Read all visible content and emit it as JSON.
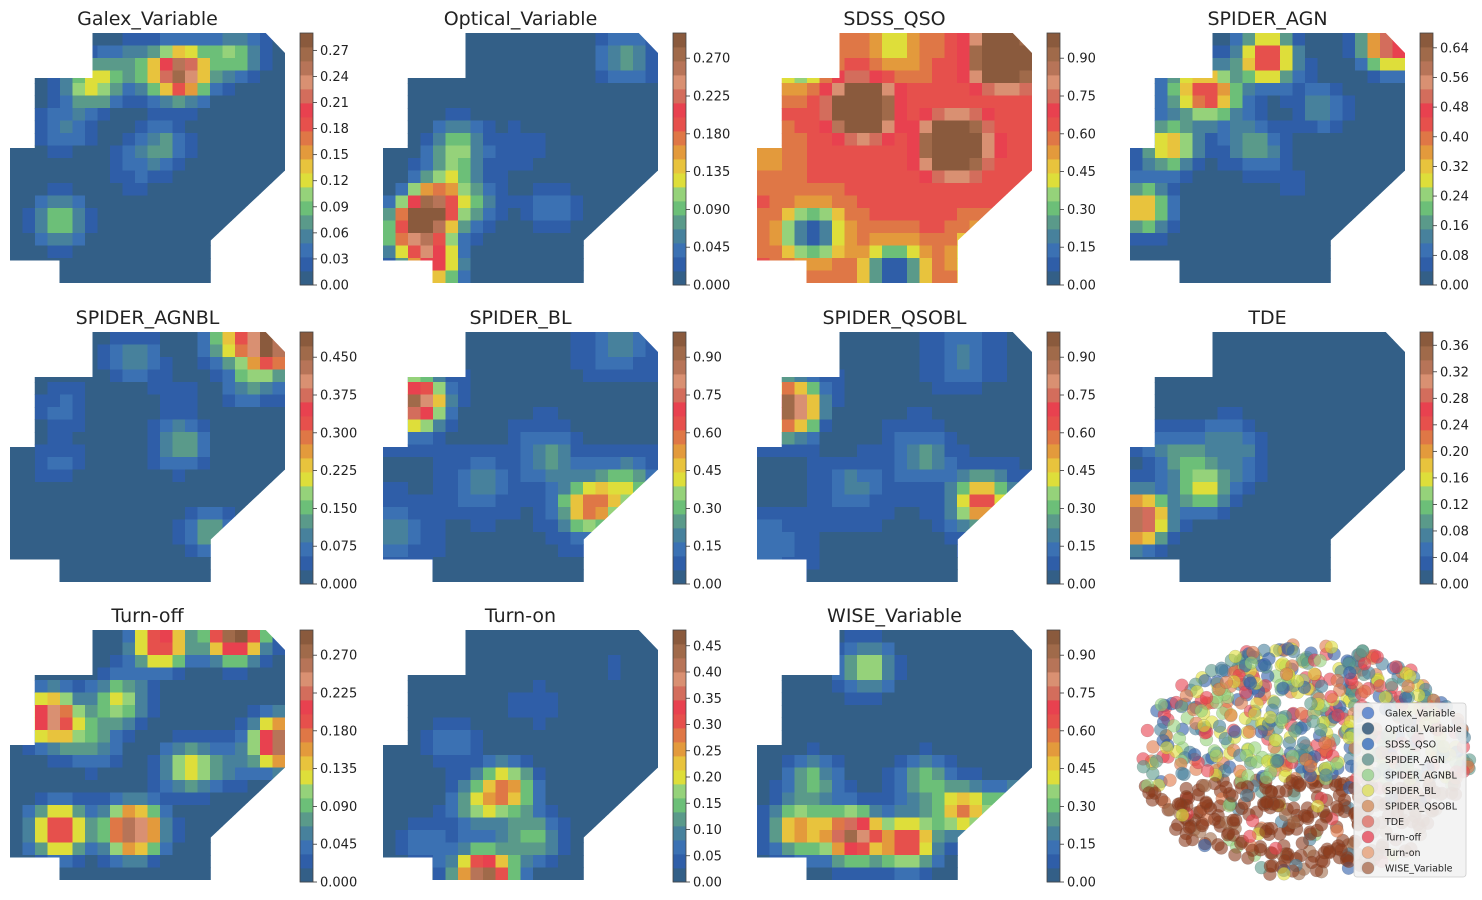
{
  "colormap": [
    "#335f87",
    "#2f5ea8",
    "#3b71b3",
    "#47819c",
    "#5a9a8a",
    "#6cbf78",
    "#95d27a",
    "#dede3a",
    "#e8c33d",
    "#e39a3c",
    "#df7746",
    "#e6504c",
    "#e8414f",
    "#d36d5c",
    "#d99072",
    "#b77458",
    "#a06a4a",
    "#8a5a3d"
  ],
  "scatter_colors": [
    "#2f5ea8",
    "#5a9a8a",
    "#47819c",
    "#95d27a",
    "#dede3a",
    "#df7746",
    "#e8414f",
    "#8a3a1d",
    "#a06a4a"
  ],
  "chart_data": [
    {
      "type": "heatmap",
      "title": "Galex_Variable",
      "colorbar_ticks": [
        "0.00",
        "0.03",
        "0.06",
        "0.09",
        "0.12",
        "0.15",
        "0.18",
        "0.21",
        "0.24",
        "0.27"
      ],
      "vmax": 0.29,
      "hotspots": [
        {
          "x": 0.62,
          "y": 0.16,
          "v": 0.27
        },
        {
          "x": 0.82,
          "y": 0.09,
          "v": 0.1
        },
        {
          "x": 0.3,
          "y": 0.2,
          "v": 0.13
        },
        {
          "x": 0.46,
          "y": 0.13,
          "v": 0.06
        },
        {
          "x": 0.55,
          "y": 0.45,
          "v": 0.07
        },
        {
          "x": 0.2,
          "y": 0.38,
          "v": 0.05
        },
        {
          "x": 0.18,
          "y": 0.75,
          "v": 0.1
        },
        {
          "x": 0.44,
          "y": 0.55,
          "v": 0.03
        }
      ]
    },
    {
      "type": "heatmap",
      "title": "Optical_Variable",
      "colorbar_ticks": [
        "0.000",
        "0.045",
        "0.090",
        "0.135",
        "0.180",
        "0.225",
        "0.270"
      ],
      "vmax": 0.3,
      "hotspots": [
        {
          "x": 0.17,
          "y": 0.72,
          "v": 0.28
        },
        {
          "x": 0.18,
          "y": 0.92,
          "v": 0.2
        },
        {
          "x": 0.1,
          "y": 0.8,
          "v": 0.14
        },
        {
          "x": 0.27,
          "y": 0.45,
          "v": 0.1
        },
        {
          "x": 0.24,
          "y": 0.6,
          "v": 0.08
        },
        {
          "x": 0.35,
          "y": 0.68,
          "v": 0.06
        },
        {
          "x": 0.88,
          "y": 0.1,
          "v": 0.08
        },
        {
          "x": 0.62,
          "y": 0.7,
          "v": 0.05
        },
        {
          "x": 0.5,
          "y": 0.45,
          "v": 0.03
        }
      ]
    },
    {
      "type": "heatmap",
      "title": "SDSS_QSO",
      "colorbar_ticks": [
        "0.00",
        "0.15",
        "0.30",
        "0.45",
        "0.60",
        "0.75",
        "0.90"
      ],
      "vmax": 1.0,
      "base": 0.62,
      "hotspots": [
        {
          "x": 0.72,
          "y": 0.45,
          "v": 0.98
        },
        {
          "x": 0.38,
          "y": 0.3,
          "v": 0.8
        },
        {
          "x": 0.9,
          "y": 0.1,
          "v": 0.95
        },
        {
          "x": 0.2,
          "y": 0.8,
          "v": -0.55
        },
        {
          "x": 0.5,
          "y": 0.95,
          "v": -0.6
        },
        {
          "x": 0.85,
          "y": 0.9,
          "v": -0.62
        },
        {
          "x": 0.05,
          "y": 0.5,
          "v": -0.1
        },
        {
          "x": 0.15,
          "y": 0.1,
          "v": -0.45
        },
        {
          "x": 0.5,
          "y": 0.05,
          "v": -0.2
        }
      ]
    },
    {
      "type": "heatmap",
      "title": "SPIDER_AGN",
      "colorbar_ticks": [
        "0.00",
        "0.08",
        "0.16",
        "0.24",
        "0.32",
        "0.40",
        "0.48",
        "0.56",
        "0.64"
      ],
      "vmax": 0.68,
      "hotspots": [
        {
          "x": 0.5,
          "y": 0.1,
          "v": 0.5
        },
        {
          "x": 0.15,
          "y": 0.45,
          "v": 0.35
        },
        {
          "x": 0.3,
          "y": 0.25,
          "v": 0.4
        },
        {
          "x": 0.95,
          "y": 0.05,
          "v": 0.55
        },
        {
          "x": 0.05,
          "y": 0.7,
          "v": 0.35
        },
        {
          "x": 0.7,
          "y": 0.3,
          "v": 0.15
        },
        {
          "x": 0.6,
          "y": 0.6,
          "v": 0.05
        },
        {
          "x": 0.2,
          "y": 0.2,
          "v": 0.2
        },
        {
          "x": 0.45,
          "y": 0.45,
          "v": 0.2
        }
      ]
    },
    {
      "type": "heatmap",
      "title": "SPIDER_AGNBL",
      "colorbar_ticks": [
        "0.000",
        "0.075",
        "0.150",
        "0.225",
        "0.300",
        "0.375",
        "0.450"
      ],
      "vmax": 0.5,
      "hotspots": [
        {
          "x": 0.95,
          "y": 0.05,
          "v": 0.48
        },
        {
          "x": 0.8,
          "y": 0.02,
          "v": 0.2
        },
        {
          "x": 0.88,
          "y": 0.2,
          "v": 0.12
        },
        {
          "x": 0.45,
          "y": 0.1,
          "v": 0.1
        },
        {
          "x": 0.62,
          "y": 0.45,
          "v": 0.14
        },
        {
          "x": 0.2,
          "y": 0.3,
          "v": 0.07
        },
        {
          "x": 0.73,
          "y": 0.8,
          "v": 0.13
        },
        {
          "x": 0.18,
          "y": 0.52,
          "v": 0.06
        },
        {
          "x": 0.6,
          "y": 0.25,
          "v": 0.04
        }
      ]
    },
    {
      "type": "heatmap",
      "title": "SPIDER_BL",
      "colorbar_ticks": [
        "0.00",
        "0.15",
        "0.30",
        "0.45",
        "0.60",
        "0.75",
        "0.90"
      ],
      "vmax": 1.0,
      "base": 0.05,
      "hotspots": [
        {
          "x": 0.12,
          "y": 0.28,
          "v": 0.9
        },
        {
          "x": 0.75,
          "y": 0.7,
          "v": 0.55
        },
        {
          "x": 0.88,
          "y": 0.62,
          "v": 0.3
        },
        {
          "x": 0.6,
          "y": 0.5,
          "v": 0.2
        },
        {
          "x": 0.35,
          "y": 0.6,
          "v": 0.15
        },
        {
          "x": 0.85,
          "y": 0.05,
          "v": 0.15
        },
        {
          "x": 0.05,
          "y": 0.8,
          "v": 0.15
        },
        {
          "x": 0.3,
          "y": 0.35,
          "v": -0.05
        },
        {
          "x": 0.78,
          "y": 0.35,
          "v": -0.05
        }
      ]
    },
    {
      "type": "heatmap",
      "title": "SPIDER_QSOBL",
      "colorbar_ticks": [
        "0.00",
        "0.15",
        "0.30",
        "0.45",
        "0.60",
        "0.75",
        "0.90"
      ],
      "vmax": 1.0,
      "base": 0.05,
      "hotspots": [
        {
          "x": 0.12,
          "y": 0.3,
          "v": 0.92
        },
        {
          "x": 0.82,
          "y": 0.68,
          "v": 0.6
        },
        {
          "x": 0.6,
          "y": 0.5,
          "v": 0.2
        },
        {
          "x": 0.35,
          "y": 0.62,
          "v": 0.15
        },
        {
          "x": 0.75,
          "y": 0.1,
          "v": 0.15
        },
        {
          "x": 0.05,
          "y": 0.85,
          "v": 0.12
        },
        {
          "x": 0.3,
          "y": 0.38,
          "v": -0.05
        },
        {
          "x": 0.8,
          "y": 0.35,
          "v": -0.05
        }
      ]
    },
    {
      "type": "heatmap",
      "title": "TDE",
      "colorbar_ticks": [
        "0.00",
        "0.04",
        "0.08",
        "0.12",
        "0.16",
        "0.20",
        "0.24",
        "0.28",
        "0.32",
        "0.36"
      ],
      "vmax": 0.38,
      "hotspots": [
        {
          "x": 0.03,
          "y": 0.75,
          "v": 0.36
        },
        {
          "x": 0.27,
          "y": 0.63,
          "v": 0.15
        },
        {
          "x": 0.2,
          "y": 0.5,
          "v": 0.07
        },
        {
          "x": 0.35,
          "y": 0.42,
          "v": 0.06
        },
        {
          "x": 0.42,
          "y": 0.52,
          "v": 0.05
        },
        {
          "x": 0.1,
          "y": 0.45,
          "v": 0.04
        }
      ]
    },
    {
      "type": "heatmap",
      "title": "Turn-off",
      "colorbar_ticks": [
        "0.000",
        "0.045",
        "0.090",
        "0.135",
        "0.180",
        "0.225",
        "0.270"
      ],
      "vmax": 0.3,
      "hotspots": [
        {
          "x": 0.15,
          "y": 0.35,
          "v": 0.25
        },
        {
          "x": 0.18,
          "y": 0.8,
          "v": 0.22
        },
        {
          "x": 0.45,
          "y": 0.8,
          "v": 0.28
        },
        {
          "x": 0.55,
          "y": 0.05,
          "v": 0.22
        },
        {
          "x": 0.82,
          "y": 0.02,
          "v": 0.3
        },
        {
          "x": 0.98,
          "y": 0.45,
          "v": 0.28
        },
        {
          "x": 0.4,
          "y": 0.28,
          "v": 0.12
        },
        {
          "x": 0.3,
          "y": 0.45,
          "v": 0.08
        },
        {
          "x": 0.65,
          "y": 0.55,
          "v": 0.12
        },
        {
          "x": 0.78,
          "y": 0.55,
          "v": 0.04
        }
      ]
    },
    {
      "type": "heatmap",
      "title": "Turn-on",
      "colorbar_ticks": [
        "0.00",
        "0.05",
        "0.10",
        "0.15",
        "0.20",
        "0.25",
        "0.30",
        "0.35",
        "0.40",
        "0.45"
      ],
      "vmax": 0.48,
      "hotspots": [
        {
          "x": 0.37,
          "y": 0.98,
          "v": 0.45
        },
        {
          "x": 0.45,
          "y": 0.63,
          "v": 0.25
        },
        {
          "x": 0.35,
          "y": 0.7,
          "v": 0.15
        },
        {
          "x": 0.55,
          "y": 0.83,
          "v": 0.15
        },
        {
          "x": 0.25,
          "y": 0.45,
          "v": 0.08
        },
        {
          "x": 0.55,
          "y": 0.3,
          "v": 0.05
        },
        {
          "x": 0.85,
          "y": 0.15,
          "v": 0.03
        },
        {
          "x": 0.15,
          "y": 0.85,
          "v": 0.08
        }
      ]
    },
    {
      "type": "heatmap",
      "title": "WISE_Variable",
      "colorbar_ticks": [
        "0.00",
        "0.15",
        "0.30",
        "0.45",
        "0.60",
        "0.75",
        "0.90"
      ],
      "vmax": 1.0,
      "hotspots": [
        {
          "x": 0.35,
          "y": 0.82,
          "v": 0.9
        },
        {
          "x": 0.55,
          "y": 0.85,
          "v": 0.7
        },
        {
          "x": 0.15,
          "y": 0.8,
          "v": 0.55
        },
        {
          "x": 0.75,
          "y": 0.72,
          "v": 0.55
        },
        {
          "x": 0.95,
          "y": 0.72,
          "v": 0.45
        },
        {
          "x": 0.4,
          "y": 0.15,
          "v": 0.4
        },
        {
          "x": 0.2,
          "y": 0.6,
          "v": 0.3
        },
        {
          "x": 0.6,
          "y": 0.6,
          "v": 0.3
        }
      ]
    },
    {
      "type": "scatter",
      "title": "",
      "legend": [
        "Galex_Variable",
        "Optical_Variable",
        "SDSS_QSO",
        "SPIDER_AGN",
        "SPIDER_AGNBL",
        "SPIDER_BL",
        "SPIDER_QSOBL",
        "TDE",
        "Turn-off",
        "Turn-on",
        "WISE_Variable"
      ],
      "legend_position": "right"
    }
  ]
}
